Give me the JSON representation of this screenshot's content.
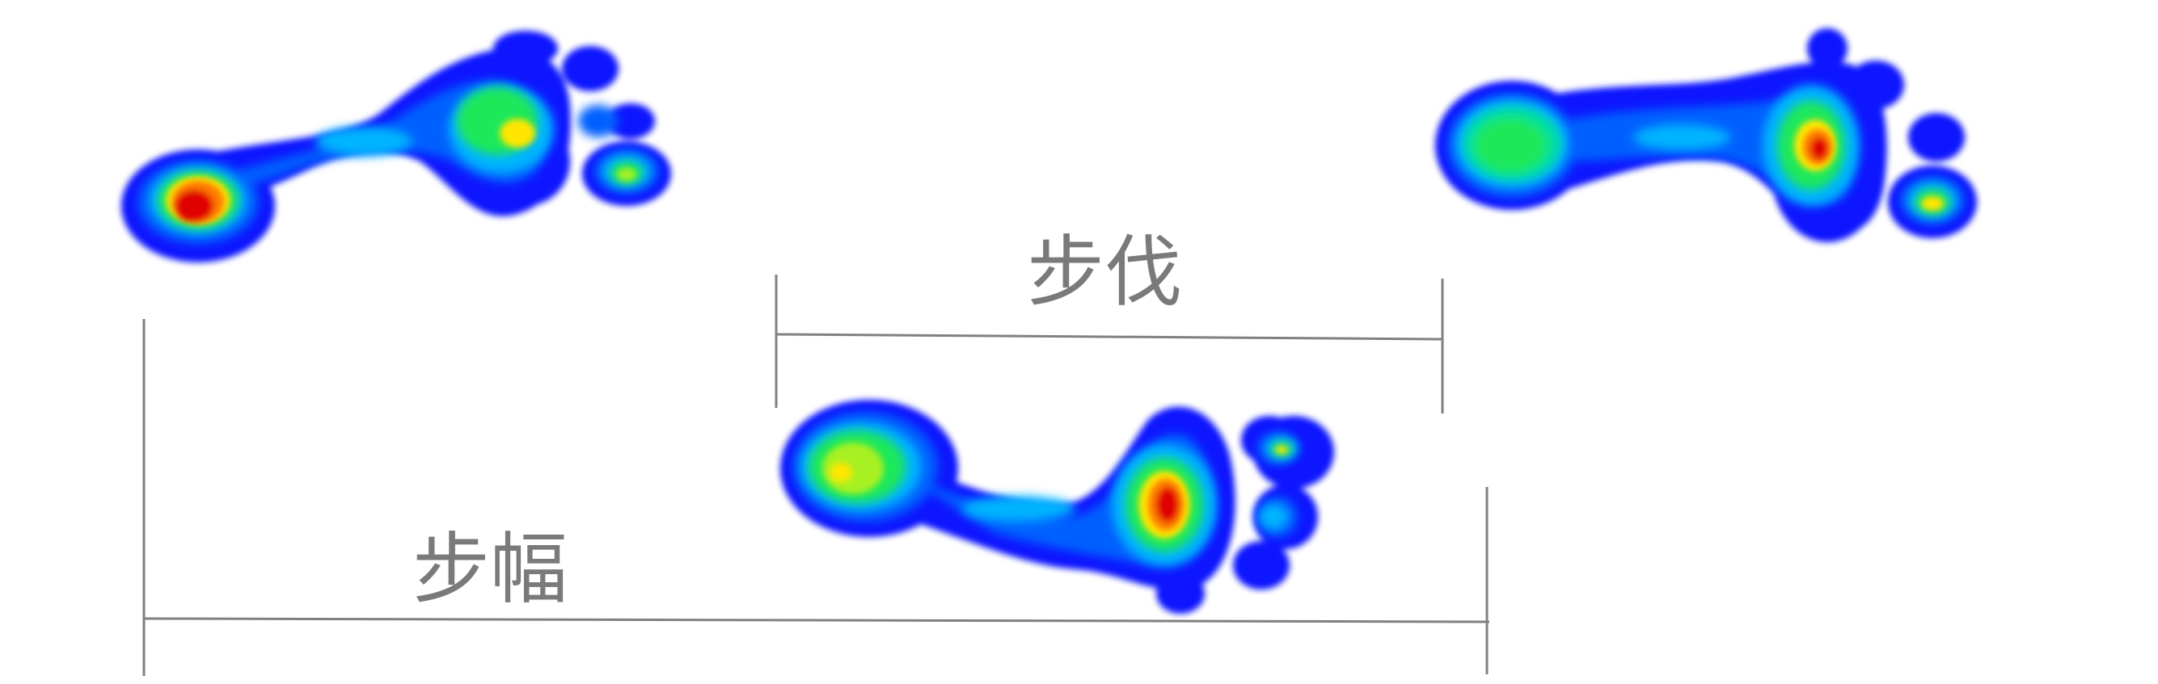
{
  "labels": {
    "step_length": "步伐",
    "stride_length": "步幅"
  },
  "colors": {
    "background": "#ffffff",
    "line": "#808080",
    "label": "#7a7a7a",
    "pressure_scale": [
      "#0a18ff",
      "#0060ff",
      "#00b4ff",
      "#00e0a0",
      "#1fe85a",
      "#a8f020",
      "#ffe600",
      "#ff7a00",
      "#e00000"
    ]
  },
  "footprints": [
    {
      "name": "footprint-left-1",
      "heel_intensity": "high",
      "forefoot_intensity": "medium"
    },
    {
      "name": "footprint-right",
      "heel_intensity": "high",
      "forefoot_intensity": "high"
    },
    {
      "name": "footprint-left-2",
      "heel_intensity": "medium",
      "forefoot_intensity": "high"
    }
  ]
}
